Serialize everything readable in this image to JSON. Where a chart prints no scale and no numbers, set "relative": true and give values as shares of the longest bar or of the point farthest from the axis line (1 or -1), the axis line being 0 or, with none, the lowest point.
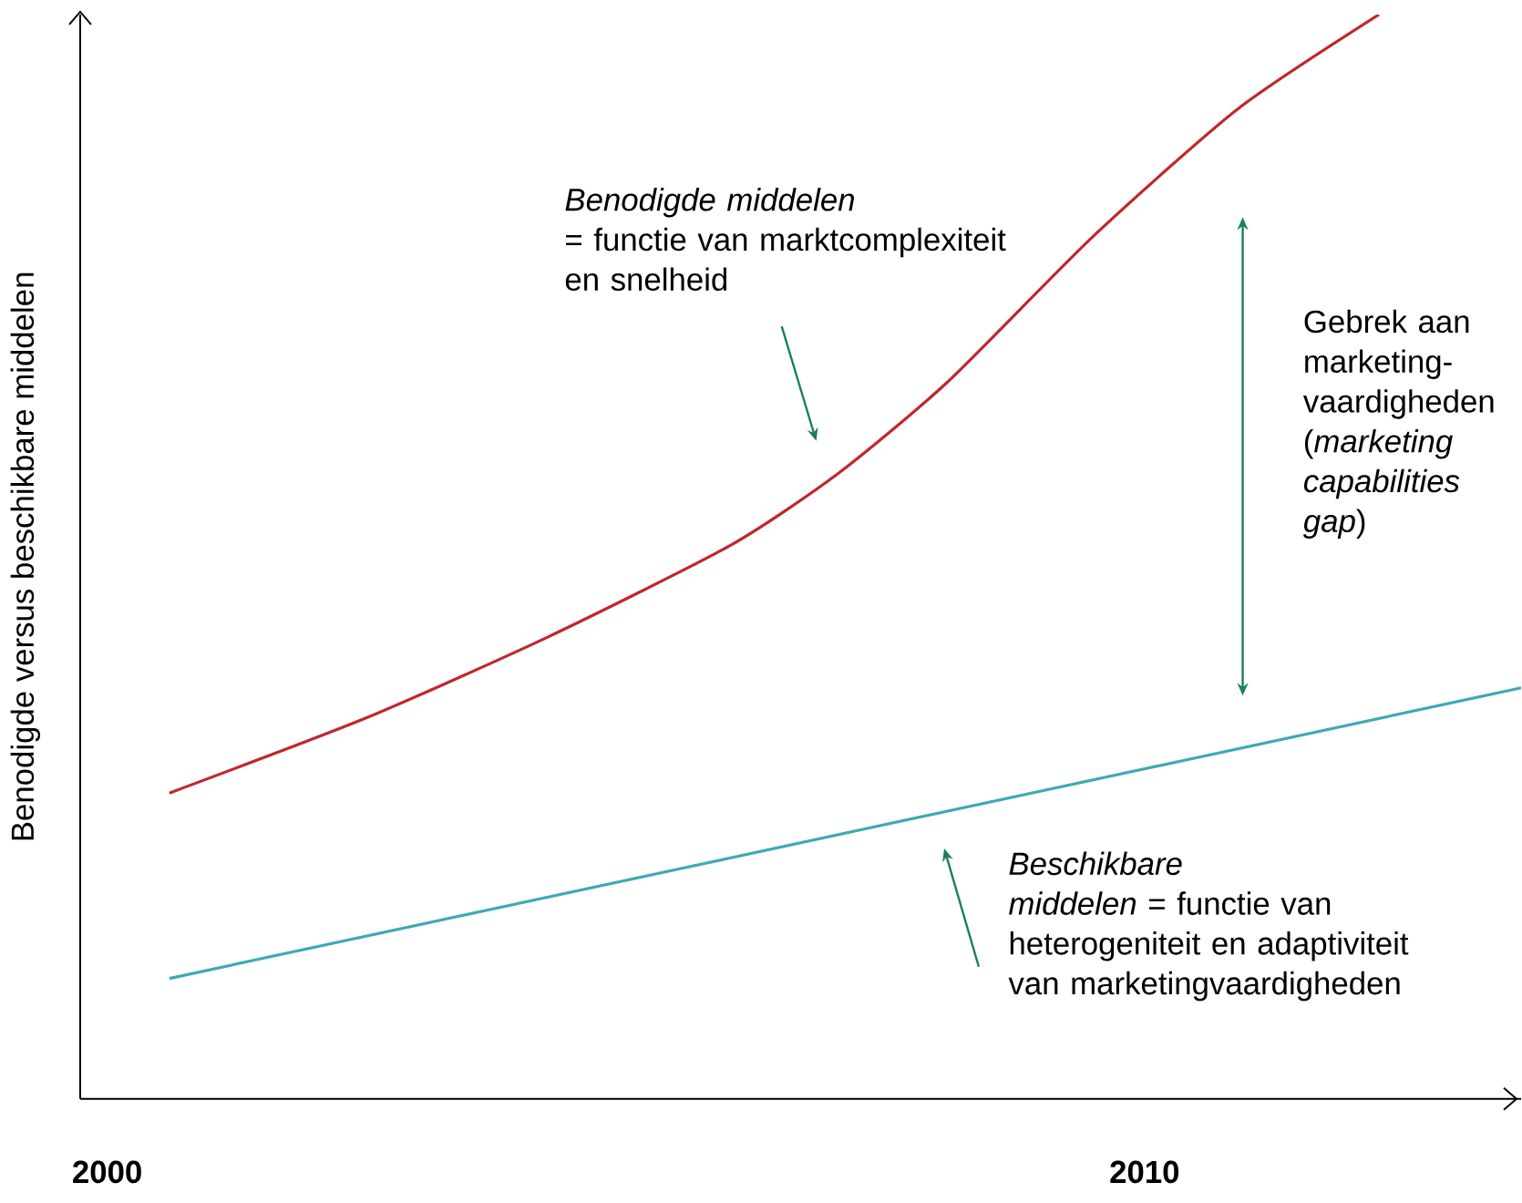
{
  "chart_data": {
    "type": "line",
    "relative": true,
    "ylabel": "Benodigde versus beschikbare middelen",
    "xlim": [
      1999.74,
      2013.63
    ],
    "xticks": [
      2000,
      2010
    ],
    "marker": "none",
    "series": [
      {
        "color": "#c0272d",
        "x": [
          2000.6,
          2002.49,
          2004.25,
          2006.0,
          2007.05,
          2008.1,
          2009.5,
          2010.9,
          2012.26
        ],
        "values": [
          0.282,
          0.351,
          0.426,
          0.51,
          0.577,
          0.661,
          0.795,
          0.913,
          1
        ]
      },
      {
        "color": "#3fa9b5",
        "x": [
          2000.6,
          2013.63
        ],
        "values": [
          0.111,
          0.379
        ]
      }
    ],
    "annotations": [
      "*Benodigde middelen* = functie van marktcomplexiteit en snelheid",
      "Gebrek aan marketing-vaardigheden (*marketing capabilities gap*)",
      "*Beschikbare middelen* = functie van heterogeniteit en adaptiviteit van marketingvaardigheden"
    ]
  }
}
